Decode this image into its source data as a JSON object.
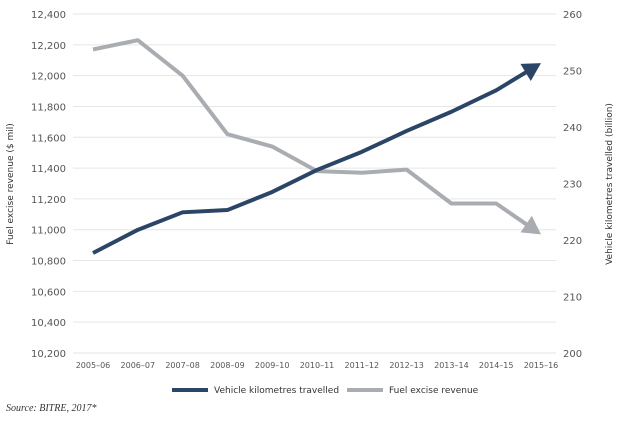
{
  "chart_data": {
    "type": "line",
    "categories": [
      "2005–06",
      "2006–07",
      "2007–08",
      "2008–09",
      "2009–10",
      "2010–11",
      "2011–12",
      "2012–13",
      "2013–14",
      "2014–15",
      "2015–16"
    ],
    "series": [
      {
        "name": "Vehicle kilometres travelled",
        "axis": "right",
        "color": "#2b4566",
        "values": [
          217.7,
          221.8,
          224.9,
          225.3,
          228.5,
          232.4,
          235.6,
          239.3,
          242.7,
          246.5,
          251.3
        ]
      },
      {
        "name": "Fuel excise revenue",
        "axis": "left",
        "color": "#a9adb2",
        "values": [
          12170,
          12230,
          12000,
          11620,
          11540,
          11380,
          11370,
          11390,
          11170,
          11170,
          10970
        ]
      }
    ],
    "ylabel": "Fuel excise revenue ($ mil)",
    "y2label": "Vehicle kilometres travelled (billion)",
    "ylim": [
      10200,
      12400
    ],
    "y2lim": [
      200,
      260
    ],
    "yticks": [
      "10,200",
      "10,400",
      "10,600",
      "10,800",
      "11,000",
      "11,200",
      "11,400",
      "11,600",
      "11,800",
      "12,000",
      "12,200",
      "12,400"
    ],
    "y2ticks": [
      "200",
      "210",
      "220",
      "230",
      "240",
      "250",
      "260"
    ],
    "grid": true,
    "legend": "bottom"
  },
  "source": "Source: BITRE, 2017*"
}
